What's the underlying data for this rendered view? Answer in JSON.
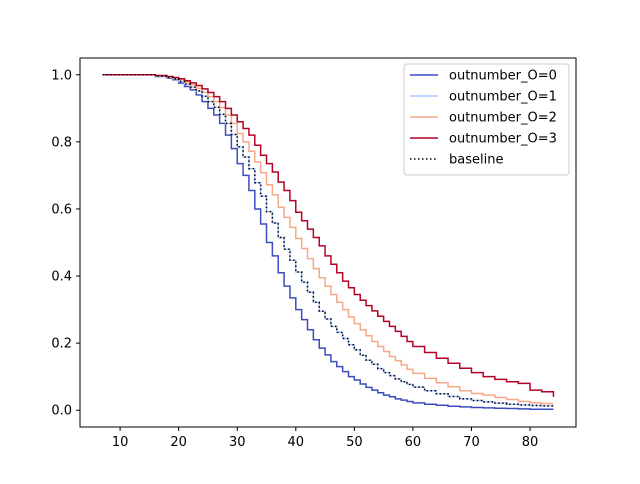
{
  "chart_data": {
    "type": "line",
    "step": true,
    "xlim": [
      3.15,
      87.85
    ],
    "ylim": [
      -0.05,
      1.05
    ],
    "xticks": [
      10,
      20,
      30,
      40,
      50,
      60,
      70,
      80
    ],
    "yticks": [
      0.0,
      0.2,
      0.4,
      0.6,
      0.8,
      1.0
    ],
    "xtick_labels": [
      "10",
      "20",
      "30",
      "40",
      "50",
      "60",
      "70",
      "80"
    ],
    "ytick_labels": [
      "0.0",
      "0.2",
      "0.4",
      "0.6",
      "0.8",
      "1.0"
    ],
    "legend_position": "upper-right",
    "series": [
      {
        "name": "outnumber_O=0",
        "color": "#3b4cc0",
        "dash": "solid",
        "x": [
          7,
          16,
          18,
          19,
          20,
          21,
          22,
          23,
          24,
          25,
          26,
          27,
          28,
          29,
          30,
          31,
          32,
          33,
          34,
          35,
          36,
          37,
          38,
          39,
          40,
          41,
          42,
          43,
          44,
          45,
          46,
          47,
          48,
          49,
          50,
          51,
          52,
          53,
          54,
          55,
          56,
          57,
          58,
          59,
          60,
          62,
          64,
          66,
          68,
          70,
          72,
          74,
          76,
          78,
          80,
          82,
          84
        ],
        "y": [
          1.0,
          0.995,
          0.99,
          0.985,
          0.975,
          0.965,
          0.955,
          0.94,
          0.92,
          0.9,
          0.88,
          0.855,
          0.82,
          0.78,
          0.735,
          0.7,
          0.655,
          0.6,
          0.555,
          0.5,
          0.46,
          0.41,
          0.37,
          0.335,
          0.3,
          0.27,
          0.24,
          0.21,
          0.185,
          0.165,
          0.145,
          0.13,
          0.115,
          0.1,
          0.09,
          0.078,
          0.068,
          0.06,
          0.052,
          0.045,
          0.04,
          0.034,
          0.03,
          0.026,
          0.022,
          0.018,
          0.015,
          0.012,
          0.01,
          0.008,
          0.007,
          0.006,
          0.005,
          0.004,
          0.003,
          0.003,
          0.003
        ]
      },
      {
        "name": "outnumber_O=1",
        "color": "#aac7fd",
        "dash": "solid",
        "x": [
          7,
          16,
          18,
          19,
          20,
          21,
          22,
          23,
          24,
          25,
          26,
          27,
          28,
          29,
          30,
          31,
          32,
          33,
          34,
          35,
          36,
          37,
          38,
          39,
          40,
          41,
          42,
          43,
          44,
          45,
          46,
          47,
          48,
          49,
          50,
          51,
          52,
          53,
          54,
          55,
          56,
          57,
          58,
          59,
          60,
          62,
          64,
          66,
          68,
          70,
          72,
          74,
          76,
          78,
          80,
          82,
          84
        ],
        "y": [
          1.0,
          0.996,
          0.992,
          0.988,
          0.98,
          0.972,
          0.963,
          0.952,
          0.936,
          0.92,
          0.903,
          0.882,
          0.855,
          0.822,
          0.785,
          0.755,
          0.72,
          0.678,
          0.638,
          0.592,
          0.558,
          0.515,
          0.48,
          0.447,
          0.412,
          0.382,
          0.352,
          0.322,
          0.295,
          0.272,
          0.25,
          0.232,
          0.214,
          0.195,
          0.18,
          0.164,
          0.149,
          0.137,
          0.124,
          0.112,
          0.103,
          0.093,
          0.085,
          0.077,
          0.069,
          0.058,
          0.049,
          0.041,
          0.034,
          0.029,
          0.025,
          0.021,
          0.018,
          0.016,
          0.014,
          0.013,
          0.012
        ]
      },
      {
        "name": "outnumber_O=2",
        "color": "#f7a889",
        "dash": "solid",
        "x": [
          7,
          16,
          18,
          19,
          20,
          21,
          22,
          23,
          24,
          25,
          26,
          27,
          28,
          29,
          30,
          31,
          32,
          33,
          34,
          35,
          36,
          37,
          38,
          39,
          40,
          41,
          42,
          43,
          44,
          45,
          46,
          47,
          48,
          49,
          50,
          51,
          52,
          53,
          54,
          55,
          56,
          57,
          58,
          59,
          60,
          62,
          64,
          66,
          68,
          70,
          72,
          74,
          76,
          78,
          80,
          82,
          84
        ],
        "y": [
          1.0,
          0.997,
          0.994,
          0.99,
          0.985,
          0.978,
          0.97,
          0.96,
          0.948,
          0.935,
          0.92,
          0.902,
          0.88,
          0.855,
          0.825,
          0.8,
          0.772,
          0.74,
          0.708,
          0.672,
          0.642,
          0.605,
          0.575,
          0.545,
          0.512,
          0.482,
          0.452,
          0.422,
          0.395,
          0.37,
          0.345,
          0.322,
          0.3,
          0.278,
          0.258,
          0.24,
          0.222,
          0.205,
          0.19,
          0.175,
          0.16,
          0.148,
          0.135,
          0.122,
          0.11,
          0.095,
          0.082,
          0.07,
          0.058,
          0.05,
          0.045,
          0.038,
          0.032,
          0.026,
          0.022,
          0.02,
          0.02
        ]
      },
      {
        "name": "outnumber_O=3",
        "color": "#b40426",
        "dash": "solid",
        "x": [
          7,
          16,
          18,
          19,
          20,
          21,
          22,
          23,
          24,
          25,
          26,
          27,
          28,
          29,
          30,
          31,
          32,
          33,
          34,
          35,
          36,
          37,
          38,
          39,
          40,
          41,
          42,
          43,
          44,
          45,
          46,
          47,
          48,
          49,
          50,
          51,
          52,
          53,
          54,
          55,
          56,
          57,
          58,
          59,
          60,
          62,
          64,
          66,
          68,
          70,
          72,
          74,
          76,
          78,
          80,
          82,
          84
        ],
        "y": [
          1.0,
          0.998,
          0.995,
          0.992,
          0.988,
          0.982,
          0.976,
          0.968,
          0.958,
          0.947,
          0.935,
          0.92,
          0.9,
          0.88,
          0.86,
          0.84,
          0.82,
          0.79,
          0.76,
          0.735,
          0.71,
          0.68,
          0.655,
          0.625,
          0.59,
          0.565,
          0.54,
          0.515,
          0.49,
          0.46,
          0.435,
          0.41,
          0.385,
          0.365,
          0.345,
          0.328,
          0.312,
          0.296,
          0.28,
          0.265,
          0.25,
          0.235,
          0.22,
          0.205,
          0.19,
          0.172,
          0.155,
          0.14,
          0.125,
          0.112,
          0.1,
          0.092,
          0.085,
          0.08,
          0.06,
          0.055,
          0.04
        ]
      },
      {
        "name": "baseline",
        "color": "#000000",
        "dash": "dotted",
        "x": [
          7,
          16,
          18,
          19,
          20,
          21,
          22,
          23,
          24,
          25,
          26,
          27,
          28,
          29,
          30,
          31,
          32,
          33,
          34,
          35,
          36,
          37,
          38,
          39,
          40,
          41,
          42,
          43,
          44,
          45,
          46,
          47,
          48,
          49,
          50,
          51,
          52,
          53,
          54,
          55,
          56,
          57,
          58,
          59,
          60,
          62,
          64,
          66,
          68,
          70,
          72,
          74,
          76,
          78,
          80,
          82,
          84
        ],
        "y": [
          1.0,
          0.996,
          0.992,
          0.988,
          0.98,
          0.972,
          0.963,
          0.952,
          0.936,
          0.92,
          0.903,
          0.882,
          0.855,
          0.822,
          0.785,
          0.755,
          0.72,
          0.678,
          0.638,
          0.592,
          0.558,
          0.515,
          0.48,
          0.447,
          0.412,
          0.382,
          0.352,
          0.322,
          0.295,
          0.272,
          0.25,
          0.232,
          0.214,
          0.195,
          0.18,
          0.164,
          0.149,
          0.137,
          0.124,
          0.112,
          0.103,
          0.093,
          0.085,
          0.077,
          0.069,
          0.058,
          0.049,
          0.041,
          0.034,
          0.029,
          0.025,
          0.021,
          0.018,
          0.016,
          0.014,
          0.013,
          0.012
        ]
      }
    ]
  }
}
